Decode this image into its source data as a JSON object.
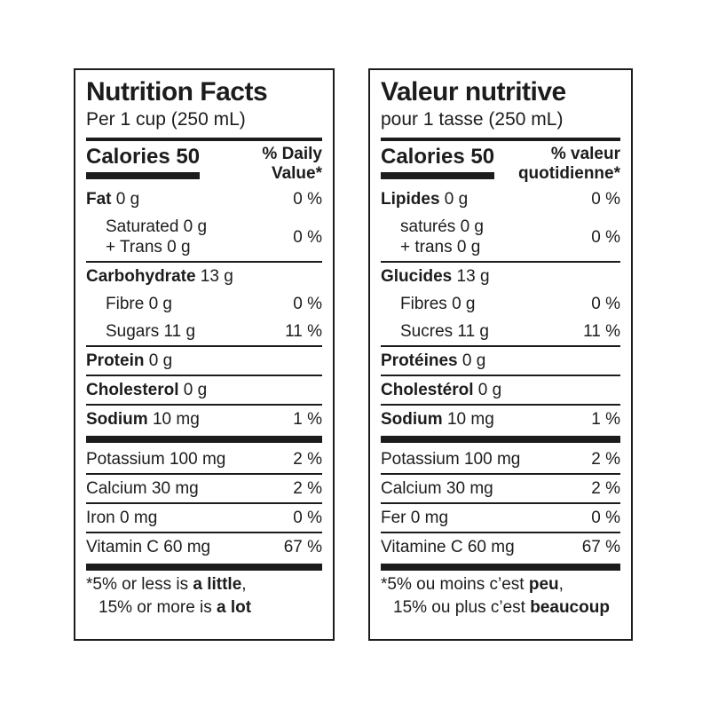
{
  "canvas": {
    "background": "#ffffff",
    "ink": "#1c1c1c"
  },
  "panels": [
    {
      "lang": "en",
      "title": "Nutrition Facts",
      "serving": "Per 1 cup (250 mL)",
      "calories": "Calories 50",
      "dv_line1": "% Daily",
      "dv_line2": "Value*",
      "rows": [
        {
          "bold": "Fat",
          "rest": " 0 g",
          "pct": "0 %",
          "indent": false,
          "after": "none"
        },
        {
          "lines": [
            "Saturated 0 g",
            "+ Trans 0 g"
          ],
          "pct": "0 %",
          "indent": true,
          "after": "thin"
        },
        {
          "bold": "Carbohydrate",
          "rest": " 13 g",
          "pct": "",
          "indent": false,
          "after": "none"
        },
        {
          "rest": "Fibre 0 g",
          "pct": "0 %",
          "indent": true,
          "after": "none"
        },
        {
          "rest": "Sugars 11 g",
          "pct": "11 %",
          "indent": true,
          "after": "thin"
        },
        {
          "bold": "Protein",
          "rest": " 0 g",
          "pct": "",
          "indent": false,
          "after": "thin"
        },
        {
          "bold": "Cholesterol",
          "rest": " 0 g",
          "pct": "",
          "indent": false,
          "after": "thin"
        },
        {
          "bold": "Sodium",
          "rest": " 10 mg",
          "pct": "1 %",
          "indent": false,
          "after": "thick"
        },
        {
          "rest": "Potassium 100 mg",
          "pct": "2 %",
          "indent": false,
          "after": "thin"
        },
        {
          "rest": "Calcium 30 mg",
          "pct": "2 %",
          "indent": false,
          "after": "thin"
        },
        {
          "rest": "Iron 0 mg",
          "pct": "0 %",
          "indent": false,
          "after": "thin"
        },
        {
          "rest": "Vitamin C 60 mg",
          "pct": "67 %",
          "indent": false,
          "after": "thick"
        }
      ],
      "footnote": [
        {
          "prefix": "*5% or less is ",
          "bold": "a little",
          "suffix": ","
        },
        {
          "prefix": "15% or more is ",
          "bold": "a lot",
          "suffix": ""
        }
      ]
    },
    {
      "lang": "fr",
      "title": "Valeur nutritive",
      "serving": "pour 1 tasse (250 mL)",
      "calories": "Calories 50",
      "dv_line1": "% valeur",
      "dv_line2": "quotidienne*",
      "rows": [
        {
          "bold": "Lipides",
          "rest": " 0 g",
          "pct": "0 %",
          "indent": false,
          "after": "none"
        },
        {
          "lines": [
            "saturés 0 g",
            "+ trans 0 g"
          ],
          "pct": "0 %",
          "indent": true,
          "after": "thin"
        },
        {
          "bold": "Glucides",
          "rest": " 13 g",
          "pct": "",
          "indent": false,
          "after": "none"
        },
        {
          "rest": "Fibres 0 g",
          "pct": "0 %",
          "indent": true,
          "after": "none"
        },
        {
          "rest": "Sucres 11 g",
          "pct": "11 %",
          "indent": true,
          "after": "thin"
        },
        {
          "bold": "Protéines",
          "rest": " 0 g",
          "pct": "",
          "indent": false,
          "after": "thin"
        },
        {
          "bold": "Cholestérol",
          "rest": " 0 g",
          "pct": "",
          "indent": false,
          "after": "thin"
        },
        {
          "bold": "Sodium",
          "rest": " 10 mg",
          "pct": "1 %",
          "indent": false,
          "after": "thick"
        },
        {
          "rest": "Potassium 100 mg",
          "pct": "2 %",
          "indent": false,
          "after": "thin"
        },
        {
          "rest": "Calcium 30 mg",
          "pct": "2 %",
          "indent": false,
          "after": "thin"
        },
        {
          "rest": "Fer 0 mg",
          "pct": "0 %",
          "indent": false,
          "after": "thin"
        },
        {
          "rest": "Vitamine C 60 mg",
          "pct": "67 %",
          "indent": false,
          "after": "thick"
        }
      ],
      "footnote": [
        {
          "prefix": "*5% ou moins c’est ",
          "bold": "peu",
          "suffix": ","
        },
        {
          "prefix": "15% ou plus c’est ",
          "bold": "beaucoup",
          "suffix": ""
        }
      ]
    }
  ]
}
